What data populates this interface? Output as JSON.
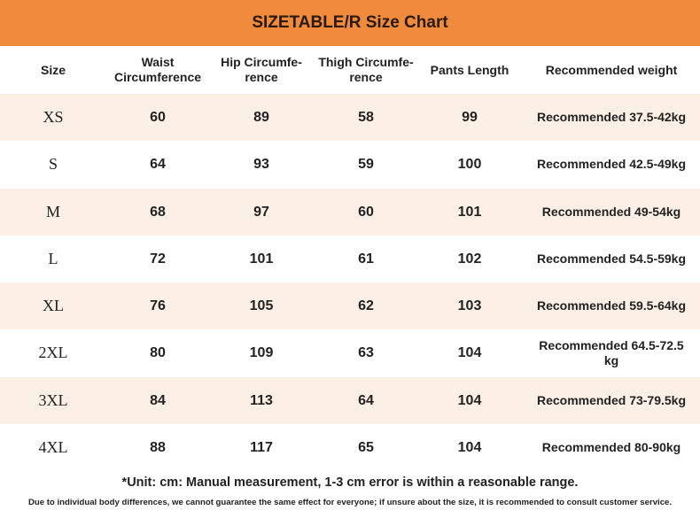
{
  "header": {
    "title": "SIZETABLE/R Size Chart"
  },
  "table": {
    "columns": [
      "Size",
      "Waist\nCircumference",
      "Hip Circumfe-\nrence",
      "Thigh Circumfe-\nrence",
      "Pants Length",
      "Recommended weight"
    ],
    "rows": [
      [
        "XS",
        60,
        89,
        58,
        99,
        "Recommended 37.5-42kg"
      ],
      [
        "S",
        64,
        93,
        59,
        100,
        "Recommended 42.5-49kg"
      ],
      [
        "M",
        68,
        97,
        60,
        101,
        "Recommended 49-54kg"
      ],
      [
        "L",
        72,
        101,
        61,
        102,
        "Recommended 54.5-59kg"
      ],
      [
        "XL",
        76,
        105,
        62,
        103,
        "Recommended 59.5-64kg"
      ],
      [
        "2XL",
        80,
        109,
        63,
        104,
        "Recommended 64.5-72.5\nkg"
      ],
      [
        "3XL",
        84,
        113,
        64,
        104,
        "Recommended 73-79.5kg"
      ],
      [
        "4XL",
        88,
        117,
        65,
        104,
        "Recommended 80-90kg"
      ]
    ]
  },
  "footer": {
    "note": "*Unit: cm: Manual measurement, 1-3 cm error is within a reasonable range.",
    "disclaimer": "Due to individual body differences, we cannot guarantee the same effect for everyone; if unsure about the size, it is recommended to consult customer service."
  }
}
